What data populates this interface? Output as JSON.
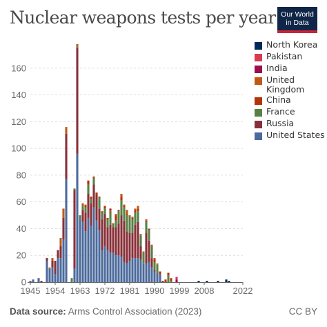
{
  "header": {
    "title": "Nuclear weapons tests per year",
    "logo_line1": "Our World",
    "logo_line2": "in Data"
  },
  "footer": {
    "source_label": "Data source:",
    "source_text": "Arms Control Association (2023)",
    "license": "CC BY"
  },
  "colors": {
    "United States": "#4c6a9c",
    "Russia": "#883039",
    "France": "#578145",
    "China": "#b13507",
    "United Kingdom": "#c05917",
    "India": "#9a0f4c",
    "Pakistan": "#d73c50",
    "North Korea": "#00295b"
  },
  "chart_data": {
    "type": "bar",
    "stacked": true,
    "title": "Nuclear weapons tests per year",
    "xlabel": "",
    "ylabel": "",
    "ylim": [
      0,
      180
    ],
    "yticks": [
      0,
      20,
      40,
      60,
      80,
      100,
      120,
      140,
      160
    ],
    "xticks": [
      1945,
      1954,
      1963,
      1972,
      1981,
      1990,
      1999,
      2008,
      2022
    ],
    "grid": "horizontal dashed",
    "legend_position": "right",
    "categories": [
      1945,
      1946,
      1947,
      1948,
      1949,
      1950,
      1951,
      1952,
      1953,
      1954,
      1955,
      1956,
      1957,
      1958,
      1959,
      1960,
      1961,
      1962,
      1963,
      1964,
      1965,
      1966,
      1967,
      1968,
      1969,
      1970,
      1971,
      1972,
      1973,
      1974,
      1975,
      1976,
      1977,
      1978,
      1979,
      1980,
      1981,
      1982,
      1983,
      1984,
      1985,
      1986,
      1987,
      1988,
      1989,
      1990,
      1991,
      1992,
      1993,
      1994,
      1995,
      1996,
      1997,
      1998,
      1999,
      2000,
      2001,
      2002,
      2003,
      2004,
      2005,
      2006,
      2007,
      2008,
      2009,
      2010,
      2011,
      2012,
      2013,
      2014,
      2015,
      2016,
      2017,
      2018,
      2019,
      2020,
      2021,
      2022
    ],
    "series": [
      {
        "name": "United States",
        "values": [
          1,
          2,
          0,
          3,
          0,
          0,
          16,
          10,
          11,
          6,
          18,
          18,
          32,
          77,
          0,
          0,
          10,
          96,
          47,
          45,
          38,
          48,
          42,
          56,
          46,
          39,
          24,
          27,
          24,
          22,
          22,
          20,
          20,
          19,
          15,
          14,
          16,
          18,
          18,
          18,
          17,
          14,
          14,
          15,
          11,
          8,
          7,
          6,
          0,
          0,
          0,
          0,
          0,
          0,
          0,
          0,
          0,
          0,
          0,
          0,
          0,
          0,
          0,
          0,
          0,
          0,
          0,
          0,
          0,
          0,
          0,
          0,
          0,
          0,
          0,
          0,
          0,
          0
        ]
      },
      {
        "name": "Russia",
        "values": [
          0,
          0,
          0,
          0,
          1,
          0,
          2,
          0,
          5,
          10,
          6,
          9,
          16,
          34,
          0,
          0,
          59,
          79,
          0,
          9,
          14,
          18,
          17,
          17,
          19,
          16,
          23,
          24,
          17,
          21,
          19,
          21,
          24,
          31,
          31,
          24,
          21,
          19,
          25,
          27,
          10,
          0,
          23,
          16,
          7,
          1,
          0,
          0,
          0,
          0,
          0,
          0,
          0,
          0,
          0,
          0,
          0,
          0,
          0,
          0,
          0,
          0,
          0,
          0,
          0,
          0,
          0,
          0,
          0,
          0,
          0,
          0,
          0,
          0,
          0,
          0,
          0,
          0
        ]
      },
      {
        "name": "United Kingdom",
        "values": [
          0,
          0,
          0,
          0,
          0,
          0,
          0,
          1,
          2,
          0,
          0,
          6,
          7,
          5,
          0,
          0,
          0,
          2,
          0,
          2,
          1,
          0,
          0,
          0,
          0,
          0,
          0,
          0,
          0,
          1,
          0,
          1,
          0,
          2,
          1,
          3,
          1,
          1,
          1,
          2,
          1,
          1,
          1,
          0,
          1,
          1,
          1,
          0,
          0,
          0,
          0,
          0,
          0,
          0,
          0,
          0,
          0,
          0,
          0,
          0,
          0,
          0,
          0,
          0,
          0,
          0,
          0,
          0,
          0,
          0,
          0,
          0,
          0,
          0,
          0,
          0,
          0,
          0
        ]
      },
      {
        "name": "France",
        "values": [
          0,
          0,
          0,
          0,
          0,
          0,
          0,
          0,
          0,
          0,
          0,
          0,
          0,
          0,
          0,
          3,
          1,
          1,
          3,
          3,
          4,
          7,
          3,
          5,
          0,
          8,
          5,
          4,
          6,
          9,
          2,
          5,
          9,
          11,
          10,
          12,
          12,
          10,
          9,
          8,
          8,
          8,
          8,
          8,
          9,
          6,
          6,
          0,
          0,
          0,
          5,
          1,
          0,
          0,
          0,
          0,
          0,
          0,
          0,
          0,
          0,
          0,
          0,
          0,
          0,
          0,
          0,
          0,
          0,
          0,
          0,
          0,
          0,
          0,
          0,
          0,
          0,
          0
        ]
      },
      {
        "name": "China",
        "values": [
          0,
          0,
          0,
          0,
          0,
          0,
          0,
          0,
          0,
          0,
          0,
          0,
          0,
          0,
          0,
          0,
          0,
          0,
          0,
          0,
          1,
          3,
          2,
          1,
          2,
          1,
          1,
          2,
          1,
          1,
          1,
          4,
          1,
          3,
          1,
          1,
          0,
          1,
          2,
          2,
          0,
          0,
          1,
          1,
          0,
          2,
          0,
          2,
          1,
          2,
          2,
          2,
          0,
          0,
          0,
          0,
          0,
          0,
          0,
          0,
          0,
          0,
          0,
          0,
          0,
          0,
          0,
          0,
          0,
          0,
          0,
          0,
          0,
          0,
          0,
          0,
          0,
          0
        ]
      },
      {
        "name": "India",
        "values": [
          0,
          0,
          0,
          0,
          0,
          0,
          0,
          0,
          0,
          0,
          0,
          0,
          0,
          0,
          0,
          0,
          0,
          0,
          0,
          0,
          0,
          0,
          0,
          0,
          0,
          0,
          0,
          0,
          0,
          1,
          0,
          0,
          0,
          0,
          0,
          0,
          0,
          0,
          0,
          0,
          0,
          0,
          0,
          0,
          0,
          0,
          0,
          0,
          0,
          0,
          0,
          0,
          0,
          2,
          0,
          0,
          0,
          0,
          0,
          0,
          0,
          0,
          0,
          0,
          0,
          0,
          0,
          0,
          0,
          0,
          0,
          0,
          0,
          0,
          0,
          0,
          0,
          0
        ]
      },
      {
        "name": "Pakistan",
        "values": [
          0,
          0,
          0,
          0,
          0,
          0,
          0,
          0,
          0,
          0,
          0,
          0,
          0,
          0,
          0,
          0,
          0,
          0,
          0,
          0,
          0,
          0,
          0,
          0,
          0,
          0,
          0,
          0,
          0,
          0,
          0,
          0,
          0,
          0,
          0,
          0,
          0,
          0,
          0,
          0,
          0,
          0,
          0,
          0,
          0,
          0,
          0,
          0,
          0,
          0,
          0,
          0,
          0,
          2,
          0,
          0,
          0,
          0,
          0,
          0,
          0,
          0,
          0,
          0,
          0,
          0,
          0,
          0,
          0,
          0,
          0,
          0,
          0,
          0,
          0,
          0,
          0,
          0
        ]
      },
      {
        "name": "North Korea",
        "values": [
          0,
          0,
          0,
          0,
          0,
          0,
          0,
          0,
          0,
          0,
          0,
          0,
          0,
          0,
          0,
          0,
          0,
          0,
          0,
          0,
          0,
          0,
          0,
          0,
          0,
          0,
          0,
          0,
          0,
          0,
          0,
          0,
          0,
          0,
          0,
          0,
          0,
          0,
          0,
          0,
          0,
          0,
          0,
          0,
          0,
          0,
          0,
          0,
          0,
          0,
          0,
          0,
          0,
          0,
          0,
          0,
          0,
          0,
          0,
          0,
          0,
          1,
          0,
          0,
          1,
          0,
          0,
          0,
          1,
          0,
          0,
          2,
          1,
          0,
          0,
          0,
          0,
          0
        ]
      }
    ],
    "legend_order": [
      "North Korea",
      "Pakistan",
      "India",
      "United Kingdom",
      "China",
      "France",
      "Russia",
      "United States"
    ]
  }
}
